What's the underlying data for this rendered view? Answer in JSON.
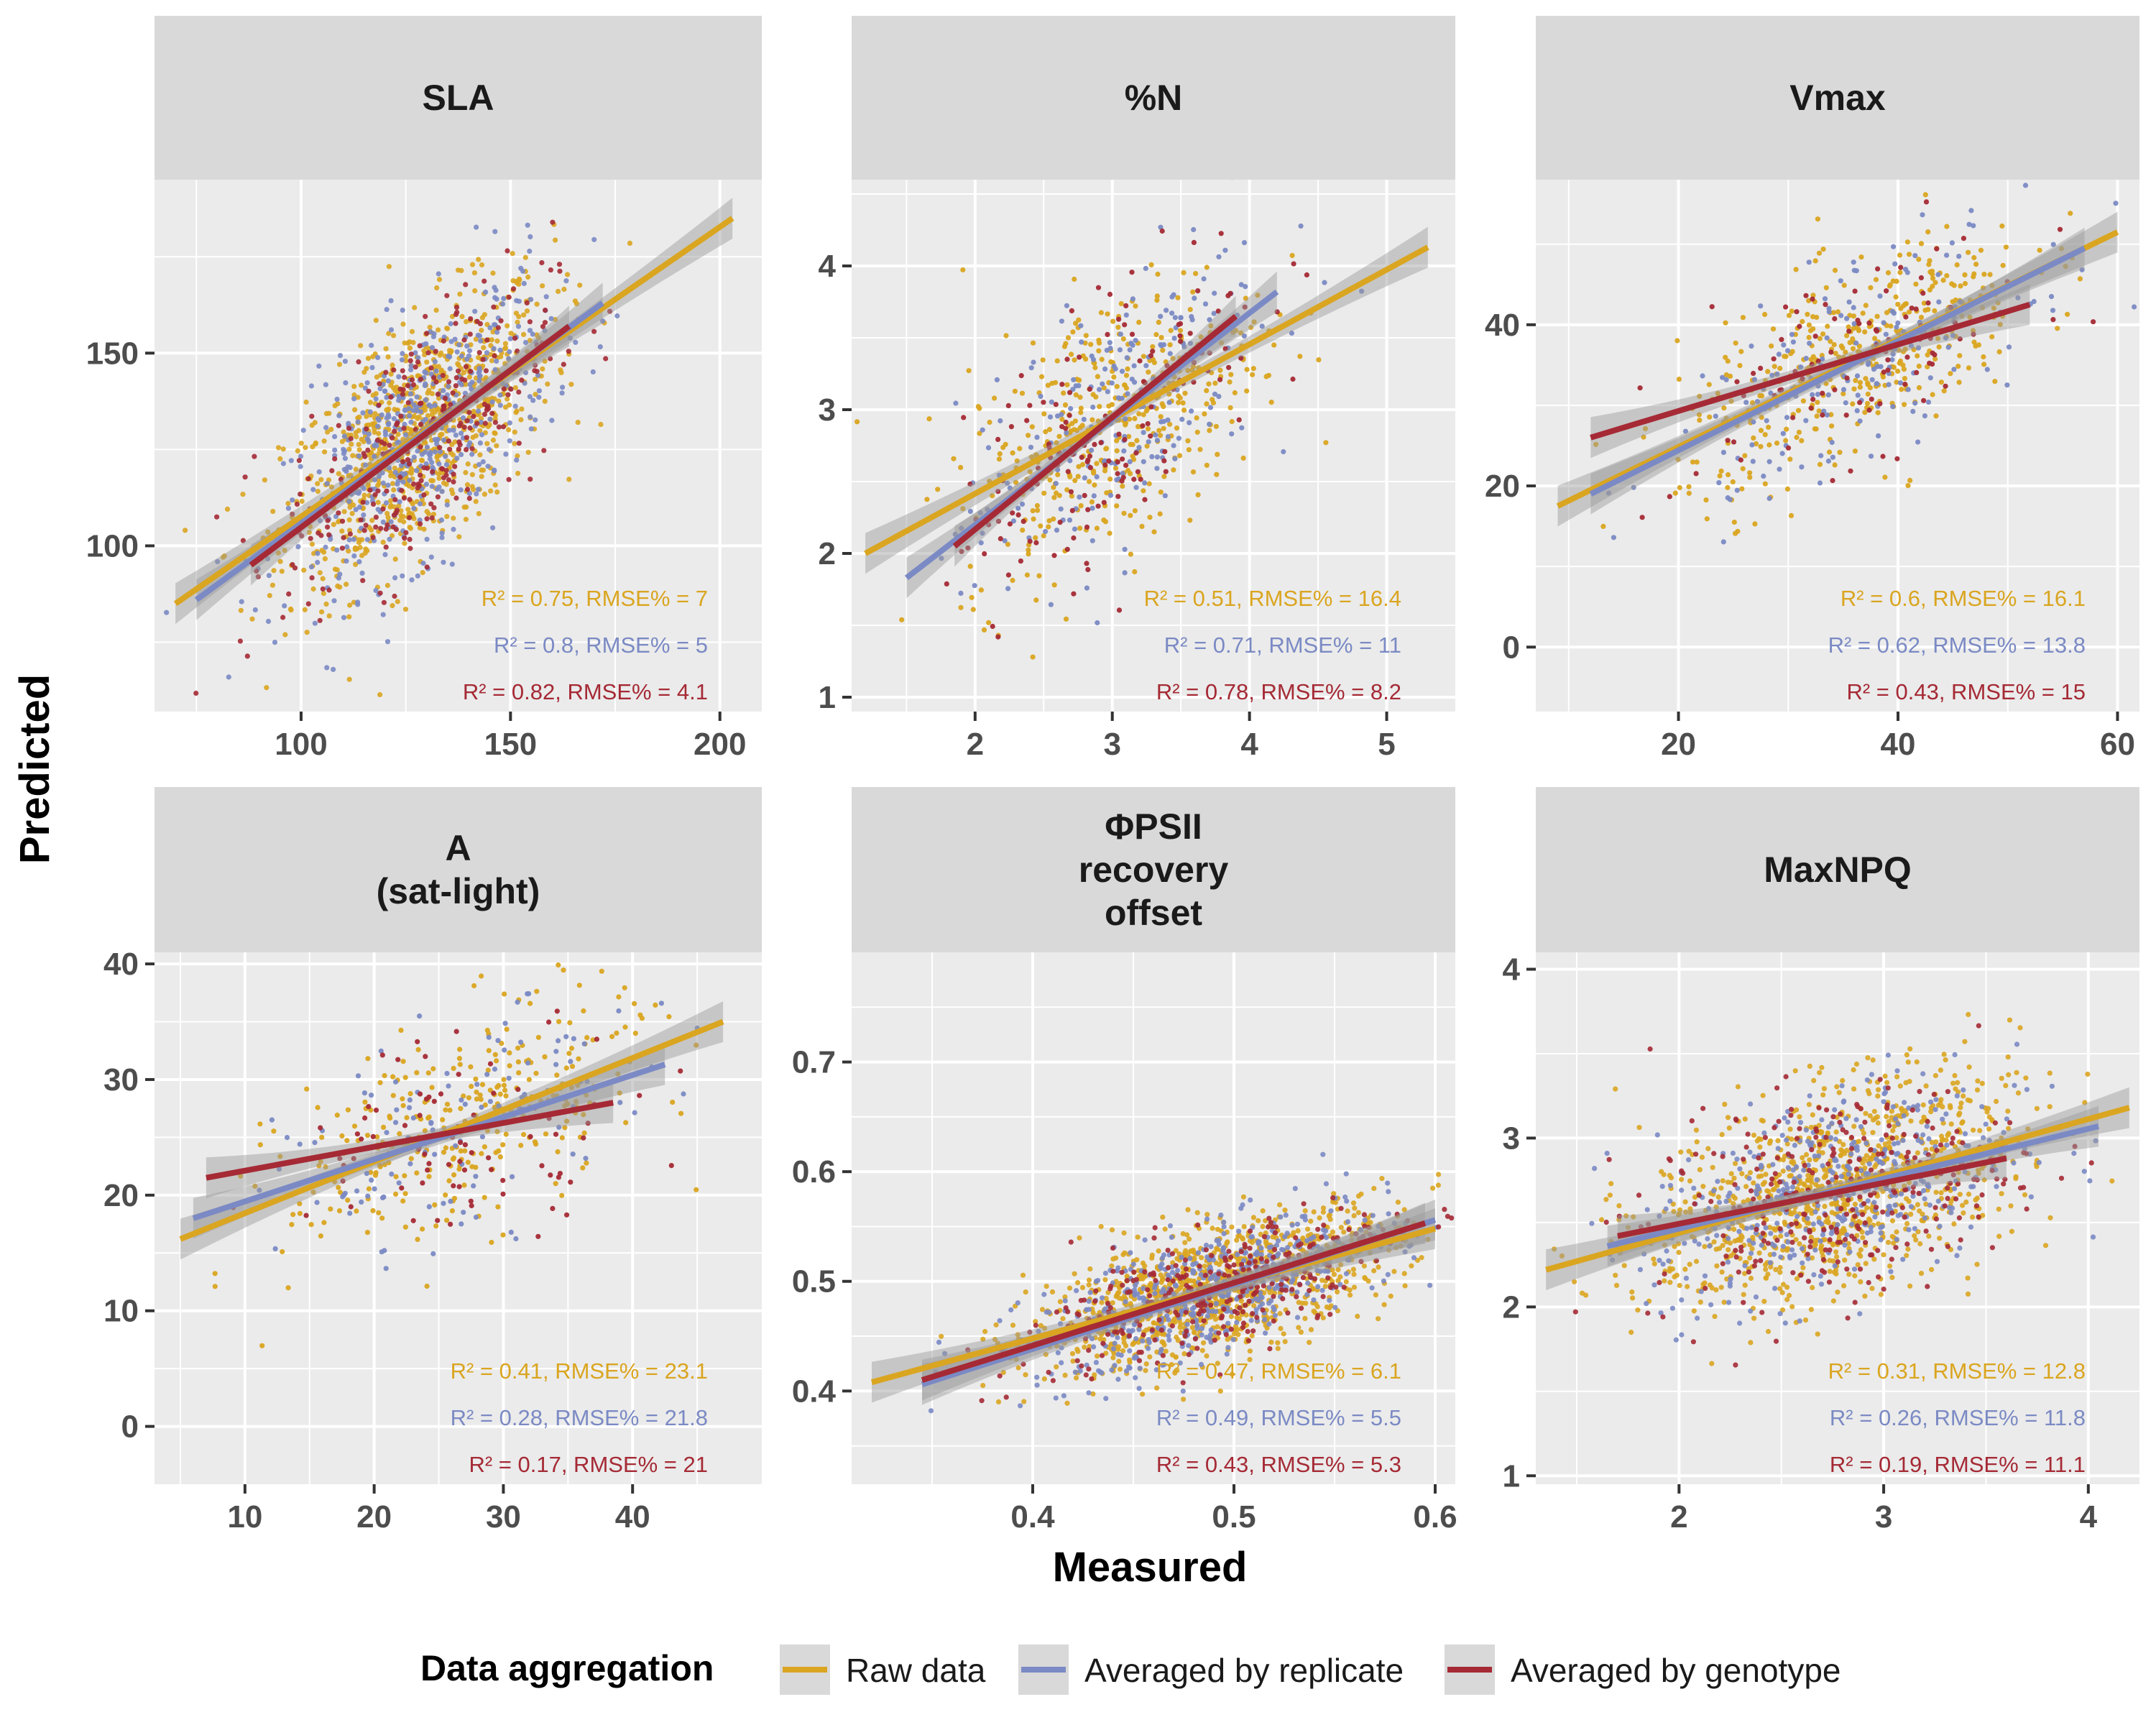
{
  "axes": {
    "xlabel": "Measured",
    "ylabel": "Predicted"
  },
  "legend": {
    "title": "Data aggregation",
    "position": "bottom",
    "items": [
      {
        "label": "Raw data",
        "color": "#DAA520"
      },
      {
        "label": "Averaged by replicate",
        "color": "#7B8AC4"
      },
      {
        "label": "Averaged by genotype",
        "color": "#A52A35"
      }
    ]
  },
  "colors": {
    "panel_bg": "#EBEBEB",
    "strip_bg": "#D9D9D9",
    "grid": "#FFFFFF",
    "ribbon": "#999999"
  },
  "chart_data": [
    {
      "type": "scatter",
      "title": [
        "SLA"
      ],
      "xlim": [
        65,
        210
      ],
      "ylim": [
        57,
        195
      ],
      "xticks": [
        100,
        150,
        200
      ],
      "yticks": [
        100,
        150
      ],
      "center": [
        128,
        128
      ],
      "spread": [
        16,
        15
      ],
      "n_points": [
        900,
        500,
        300
      ],
      "point_opacity": 0.9,
      "series": [
        {
          "name": "Raw data",
          "color": "#DAA520",
          "fit": {
            "x": [
              70,
              203
            ],
            "y": [
              85,
              185
            ]
          },
          "stats": "R² = 0.75, RMSE% = 7"
        },
        {
          "name": "Averaged by replicate",
          "color": "#7B8AC4",
          "fit": {
            "x": [
              75,
              172
            ],
            "y": [
              86,
              163
            ]
          },
          "stats": "R² = 0.8, RMSE% = 5"
        },
        {
          "name": "Averaged by genotype",
          "color": "#A52A35",
          "fit": {
            "x": [
              88,
              164
            ],
            "y": [
              95,
              157
            ]
          },
          "stats": "R² = 0.82, RMSE% = 4.1"
        }
      ]
    },
    {
      "type": "scatter",
      "title": [
        "%N"
      ],
      "xlim": [
        1.1,
        5.5
      ],
      "ylim": [
        0.9,
        4.6
      ],
      "xticks": [
        2,
        3,
        4,
        5
      ],
      "yticks": [
        1,
        2,
        3,
        4
      ],
      "center": [
        3,
        2.95
      ],
      "spread": [
        0.55,
        0.45
      ],
      "n_points": [
        420,
        220,
        150
      ],
      "point_opacity": 0.95,
      "series": [
        {
          "name": "Raw data",
          "color": "#DAA520",
          "fit": {
            "x": [
              1.2,
              5.3
            ],
            "y": [
              2.0,
              4.13
            ]
          },
          "stats": "R² = 0.51, RMSE% = 16.4"
        },
        {
          "name": "Averaged by replicate",
          "color": "#7B8AC4",
          "fit": {
            "x": [
              1.5,
              4.2
            ],
            "y": [
              1.83,
              3.82
            ]
          },
          "stats": "R² = 0.71, RMSE% = 11"
        },
        {
          "name": "Averaged by genotype",
          "color": "#A52A35",
          "fit": {
            "x": [
              1.85,
              3.9
            ],
            "y": [
              2.05,
              3.65
            ]
          },
          "stats": "R² = 0.78, RMSE% = 8.2"
        }
      ]
    },
    {
      "type": "scatter",
      "title": [
        "Vmax"
      ],
      "xlim": [
        7,
        62
      ],
      "ylim": [
        -8,
        58
      ],
      "xticks": [
        20,
        40,
        60
      ],
      "yticks": [
        0,
        20,
        40
      ],
      "center": [
        36,
        35
      ],
      "spread": [
        8,
        6
      ],
      "n_points": [
        420,
        180,
        100
      ],
      "point_opacity": 0.95,
      "series": [
        {
          "name": "Raw data",
          "color": "#DAA520",
          "fit": {
            "x": [
              9,
              60
            ],
            "y": [
              17.5,
              51.5
            ]
          },
          "stats": "R² = 0.6, RMSE% = 16.1"
        },
        {
          "name": "Averaged by replicate",
          "color": "#7B8AC4",
          "fit": {
            "x": [
              12,
              57
            ],
            "y": [
              19,
              49.5
            ]
          },
          "stats": "R² = 0.62, RMSE% = 13.8"
        },
        {
          "name": "Averaged by genotype",
          "color": "#A52A35",
          "fit": {
            "x": [
              12,
              52
            ],
            "y": [
              26,
              42.5
            ]
          },
          "stats": "R² = 0.43, RMSE% = 15"
        }
      ]
    },
    {
      "type": "scatter",
      "title": [
        "A",
        "(sat-light)"
      ],
      "xlim": [
        3,
        50
      ],
      "ylim": [
        -5,
        41
      ],
      "xticks": [
        10,
        20,
        30,
        40
      ],
      "yticks": [
        0,
        10,
        20,
        30,
        40
      ],
      "center": [
        27,
        25
      ],
      "spread": [
        7,
        4.5
      ],
      "n_points": [
        320,
        110,
        80
      ],
      "point_opacity": 0.95,
      "series": [
        {
          "name": "Raw data",
          "color": "#DAA520",
          "fit": {
            "x": [
              5,
              47
            ],
            "y": [
              16.2,
              35
            ]
          },
          "stats": "R² = 0.41, RMSE% = 23.1"
        },
        {
          "name": "Averaged by replicate",
          "color": "#7B8AC4",
          "fit": {
            "x": [
              6,
              42.5
            ],
            "y": [
              18,
              31.3
            ]
          },
          "stats": "R² = 0.28, RMSE% = 21.8"
        },
        {
          "name": "Averaged by genotype",
          "color": "#A52A35",
          "fit": {
            "x": [
              7,
              38.5
            ],
            "y": [
              21.5,
              28
            ]
          },
          "stats": "R² = 0.17, RMSE% = 21"
        }
      ]
    },
    {
      "type": "scatter",
      "title": [
        "ΦPSII",
        "recovery",
        "offset"
      ],
      "xlim": [
        0.31,
        0.61
      ],
      "ylim": [
        0.315,
        0.8
      ],
      "xticks": [
        0.4,
        0.5,
        0.6
      ],
      "yticks": [
        0.4,
        0.5,
        0.6,
        0.7
      ],
      "center": [
        0.49,
        0.487
      ],
      "spread": [
        0.045,
        0.028
      ],
      "n_points": [
        1100,
        550,
        300
      ],
      "point_opacity": 0.9,
      "series": [
        {
          "name": "Raw data",
          "color": "#DAA520",
          "fit": {
            "x": [
              0.32,
              0.6
            ],
            "y": [
              0.408,
              0.548
            ]
          },
          "stats": "R² = 0.47, RMSE% = 6.1"
        },
        {
          "name": "Averaged by replicate",
          "color": "#7B8AC4",
          "fit": {
            "x": [
              0.345,
              0.6
            ],
            "y": [
              0.406,
              0.556
            ]
          },
          "stats": "R² = 0.49, RMSE% = 5.5"
        },
        {
          "name": "Averaged by genotype",
          "color": "#A52A35",
          "fit": {
            "x": [
              0.345,
              0.595
            ],
            "y": [
              0.41,
              0.553
            ]
          },
          "stats": "R² = 0.43, RMSE% = 5.3"
        }
      ]
    },
    {
      "type": "scatter",
      "title": [
        "MaxNPQ"
      ],
      "xlim": [
        1.3,
        4.25
      ],
      "ylim": [
        0.95,
        4.1
      ],
      "xticks": [
        2,
        3,
        4
      ],
      "yticks": [
        1,
        2,
        3,
        4
      ],
      "center": [
        2.75,
        2.68
      ],
      "spread": [
        0.45,
        0.3
      ],
      "n_points": [
        1000,
        450,
        300
      ],
      "point_opacity": 0.9,
      "series": [
        {
          "name": "Raw data",
          "color": "#DAA520",
          "fit": {
            "x": [
              1.35,
              4.2
            ],
            "y": [
              2.22,
              3.18
            ]
          },
          "stats": "R² = 0.31, RMSE% = 12.8"
        },
        {
          "name": "Averaged by replicate",
          "color": "#7B8AC4",
          "fit": {
            "x": [
              1.65,
              4.05
            ],
            "y": [
              2.36,
              3.07
            ]
          },
          "stats": "R² = 0.26, RMSE% = 11.8"
        },
        {
          "name": "Averaged by genotype",
          "color": "#A52A35",
          "fit": {
            "x": [
              1.7,
              3.6
            ],
            "y": [
              2.42,
              2.88
            ]
          },
          "stats": "R² = 0.19, RMSE% = 11.1"
        }
      ]
    }
  ]
}
